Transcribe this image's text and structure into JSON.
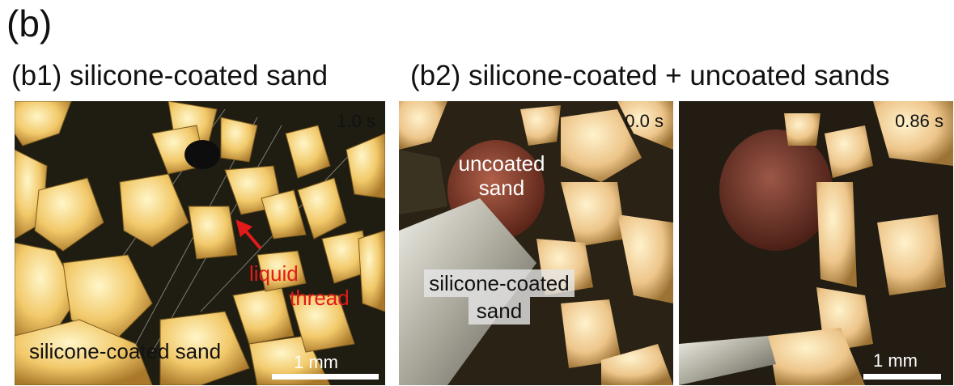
{
  "figure": {
    "letter": "(b)",
    "panel_b1": {
      "title": "(b1) silicone-coated sand",
      "time": "1.0 s",
      "arrow_label_line1": "liquid",
      "arrow_label_line2": "thread",
      "bottom_label": "silicone-coated sand",
      "scale_label": "1 mm",
      "arrow_color": "#e21a1a"
    },
    "panel_b2": {
      "title": "(b2) silicone-coated + uncoated sands",
      "left_time": "0.0 s",
      "right_time": "0.86 s",
      "uncoated_line1": "uncoated",
      "uncoated_line2": "sand",
      "coated_line1": "silicone-coated",
      "coated_line2": "sand",
      "scale_label": "1 mm"
    }
  }
}
